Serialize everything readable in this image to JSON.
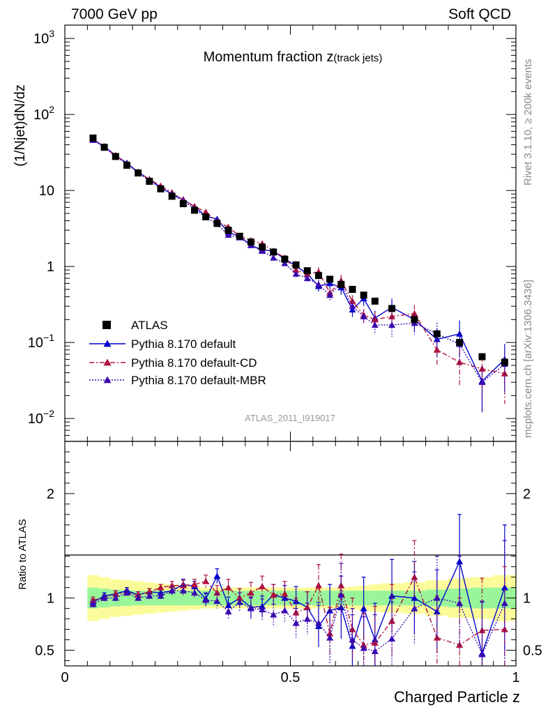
{
  "header": {
    "energy_label": "7000 GeV pp",
    "process_label": "Soft QCD"
  },
  "side": {
    "rivet_label": "Rivet 3.1.10, ≥ 200k events",
    "mcplots_label": "mcplots.cern.ch [arXiv:1306.3436]"
  },
  "colors": {
    "atlas": "#000000",
    "default": "#0000cc",
    "default_cd": "#b0113c",
    "default_mbr": "#3a0ab0",
    "band_inner": "#99f59a",
    "band_outer": "#fbfb9a"
  },
  "chart_data": [
    {
      "panel": "main",
      "type": "scatter",
      "title": "Momentum fraction z",
      "title_sub": "(track jets)",
      "analysis_label": "ATLAS_2011_I919017",
      "ylabel": "(1/Njet)dN/dz",
      "xlim": [
        0,
        1
      ],
      "ylim": [
        0.005,
        1500
      ],
      "yscale": "log",
      "yticks": [
        {
          "v": 0.01,
          "label": "10",
          "exp": "−2"
        },
        {
          "v": 0.1,
          "label": "10",
          "exp": "−1"
        },
        {
          "v": 1,
          "label": "1",
          "exp": ""
        },
        {
          "v": 10,
          "label": "10",
          "exp": ""
        },
        {
          "v": 100,
          "label": "10",
          "exp": "2"
        },
        {
          "v": 1000,
          "label": "10",
          "exp": "3"
        }
      ],
      "legend_position": "bottom-left",
      "x": [
        0.0625,
        0.0875,
        0.1125,
        0.1375,
        0.1625,
        0.1875,
        0.2125,
        0.2375,
        0.2625,
        0.2875,
        0.3125,
        0.3375,
        0.3625,
        0.3875,
        0.4125,
        0.4375,
        0.4625,
        0.4875,
        0.5125,
        0.5375,
        0.5625,
        0.5875,
        0.6125,
        0.6375,
        0.6625,
        0.6875,
        0.725,
        0.775,
        0.825,
        0.875,
        0.925,
        0.975
      ],
      "series": [
        {
          "name": "ATLAS",
          "marker": "square",
          "line": "none",
          "values": [
            49,
            37,
            28,
            21.5,
            17,
            13.2,
            10.5,
            8.4,
            6.7,
            5.5,
            4.5,
            3.7,
            3.0,
            2.5,
            2.1,
            1.8,
            1.55,
            1.25,
            1.05,
            0.88,
            0.76,
            0.68,
            0.58,
            0.5,
            0.42,
            0.35,
            0.28,
            0.2,
            0.13,
            0.1,
            0.065,
            0.055
          ]
        },
        {
          "name": "Pythia 8.170 default",
          "marker": "triangle",
          "line": "solid",
          "values": [
            47,
            38,
            29,
            23,
            17.5,
            14,
            11,
            9.0,
            7.6,
            6.1,
            4.6,
            4.2,
            2.8,
            2.5,
            1.9,
            1.65,
            1.6,
            1.25,
            1.02,
            0.8,
            0.55,
            0.6,
            0.53,
            0.27,
            0.38,
            0.21,
            0.29,
            0.2,
            0.11,
            0.13,
            0.031,
            0.06
          ],
          "errors": [
            0.015,
            0.01,
            0.01,
            0.01,
            0.01,
            0.01,
            0.01,
            0.01,
            0.01,
            0.02,
            0.02,
            0.03,
            0.04,
            0.05,
            0.05,
            0.06,
            0.07,
            0.08,
            0.1,
            0.12,
            0.15,
            0.15,
            0.2,
            0.2,
            0.2,
            0.25,
            0.3,
            0.3,
            0.4,
            0.5,
            0.6,
            0.6
          ]
        },
        {
          "name": "Pythia 8.170 default-CD",
          "marker": "triangle",
          "line": "dashdot",
          "values": [
            48,
            37,
            29,
            22.5,
            17.5,
            14,
            11.5,
            9.4,
            7.5,
            6.2,
            5.2,
            3.9,
            3.3,
            2.5,
            2.2,
            2.0,
            1.6,
            1.3,
            0.9,
            0.8,
            0.85,
            0.45,
            0.65,
            0.35,
            0.23,
            0.2,
            0.22,
            0.24,
            0.08,
            0.055,
            0.045,
            0.039
          ],
          "errors": [
            0.015,
            0.01,
            0.01,
            0.01,
            0.01,
            0.01,
            0.01,
            0.01,
            0.01,
            0.02,
            0.02,
            0.03,
            0.04,
            0.05,
            0.05,
            0.06,
            0.07,
            0.08,
            0.1,
            0.12,
            0.15,
            0.15,
            0.2,
            0.2,
            0.2,
            0.25,
            0.3,
            0.3,
            0.4,
            0.5,
            0.6,
            0.6
          ]
        },
        {
          "name": "Pythia 8.170 default-MBR",
          "marker": "triangle",
          "line": "dotted",
          "values": [
            46,
            37,
            28,
            22.5,
            17,
            13.5,
            10.7,
            9.0,
            7.2,
            5.8,
            4.4,
            3.6,
            2.6,
            2.4,
            1.9,
            1.6,
            1.3,
            1.1,
            0.8,
            0.7,
            0.58,
            0.42,
            0.6,
            0.3,
            0.22,
            0.17,
            0.17,
            0.18,
            0.13,
            0.095,
            0.03,
            0.052
          ],
          "errors": [
            0.015,
            0.01,
            0.01,
            0.01,
            0.01,
            0.01,
            0.01,
            0.01,
            0.01,
            0.02,
            0.02,
            0.03,
            0.04,
            0.05,
            0.05,
            0.06,
            0.07,
            0.08,
            0.1,
            0.12,
            0.15,
            0.15,
            0.2,
            0.2,
            0.2,
            0.25,
            0.3,
            0.3,
            0.4,
            0.5,
            0.6,
            0.6
          ]
        }
      ]
    },
    {
      "panel": "ratio",
      "type": "line",
      "ylabel": "Ratio to ATLAS",
      "xlabel": "Charged Particle z",
      "xlim": [
        0,
        1
      ],
      "ylim": [
        0.35,
        2.5
      ],
      "yticks": [
        {
          "v": 0.5,
          "label": "0.5"
        },
        {
          "v": 1,
          "label": "1"
        },
        {
          "v": 2,
          "label": "2"
        }
      ],
      "xticks": [
        {
          "v": 0,
          "label": "0"
        },
        {
          "v": 0.5,
          "label": "0.5"
        },
        {
          "v": 1,
          "label": "1"
        }
      ],
      "x": [
        0.0625,
        0.0875,
        0.1125,
        0.1375,
        0.1625,
        0.1875,
        0.2125,
        0.2375,
        0.2625,
        0.2875,
        0.3125,
        0.3375,
        0.3625,
        0.3875,
        0.4125,
        0.4375,
        0.4625,
        0.4875,
        0.5125,
        0.5375,
        0.5625,
        0.5875,
        0.6125,
        0.6375,
        0.6625,
        0.6875,
        0.725,
        0.775,
        0.825,
        0.875,
        0.925,
        0.975
      ],
      "x_edges": [
        0.05,
        0.075,
        0.1,
        0.125,
        0.15,
        0.175,
        0.2,
        0.225,
        0.25,
        0.275,
        0.3,
        0.325,
        0.35,
        0.375,
        0.4,
        0.425,
        0.45,
        0.475,
        0.5,
        0.525,
        0.55,
        0.575,
        0.6,
        0.625,
        0.65,
        0.675,
        0.7,
        0.75,
        0.8,
        0.85,
        0.9,
        0.95,
        1.0
      ],
      "band_inner": [
        0.1,
        0.09,
        0.08,
        0.075,
        0.07,
        0.07,
        0.07,
        0.07,
        0.07,
        0.07,
        0.07,
        0.07,
        0.07,
        0.07,
        0.07,
        0.07,
        0.07,
        0.07,
        0.07,
        0.07,
        0.07,
        0.07,
        0.07,
        0.07,
        0.07,
        0.07,
        0.07,
        0.07,
        0.08,
        0.09,
        0.1,
        0.1
      ],
      "band_outer": [
        0.22,
        0.2,
        0.18,
        0.17,
        0.16,
        0.15,
        0.14,
        0.13,
        0.12,
        0.11,
        0.1,
        0.1,
        0.1,
        0.1,
        0.1,
        0.1,
        0.1,
        0.1,
        0.1,
        0.1,
        0.1,
        0.1,
        0.1,
        0.11,
        0.12,
        0.13,
        0.14,
        0.15,
        0.17,
        0.19,
        0.2,
        0.22
      ],
      "series": [
        {
          "name": "Pythia 8.170 default",
          "values": [
            0.96,
            1.02,
            1.04,
            1.07,
            1.03,
            1.06,
            1.05,
            1.07,
            1.13,
            1.11,
            0.99,
            1.21,
            0.93,
            1.0,
            0.91,
            0.92,
            1.03,
            1.0,
            0.97,
            0.91,
            0.73,
            0.88,
            0.91,
            0.54,
            0.9,
            0.6,
            1.02,
            1.0,
            0.87,
            1.35,
            0.47,
            1.1
          ],
          "errors": [
            0.03,
            0.03,
            0.03,
            0.03,
            0.03,
            0.03,
            0.03,
            0.04,
            0.05,
            0.05,
            0.06,
            0.07,
            0.08,
            0.09,
            0.1,
            0.1,
            0.1,
            0.12,
            0.14,
            0.15,
            0.2,
            0.25,
            0.3,
            0.3,
            0.3,
            0.35,
            0.35,
            0.35,
            0.4,
            0.45,
            0.5,
            0.6
          ]
        },
        {
          "name": "Pythia 8.170 default-CD",
          "values": [
            0.98,
            1.0,
            1.04,
            1.05,
            1.03,
            1.06,
            1.1,
            1.12,
            1.12,
            1.13,
            1.16,
            1.05,
            1.1,
            1.0,
            1.05,
            1.11,
            1.03,
            1.04,
            0.86,
            0.91,
            1.12,
            0.66,
            1.12,
            0.7,
            0.55,
            0.57,
            0.78,
            1.2,
            0.62,
            0.55,
            0.69,
            0.7
          ],
          "errors": [
            0.03,
            0.03,
            0.03,
            0.03,
            0.03,
            0.03,
            0.03,
            0.04,
            0.05,
            0.05,
            0.06,
            0.07,
            0.08,
            0.09,
            0.1,
            0.1,
            0.1,
            0.12,
            0.14,
            0.15,
            0.2,
            0.25,
            0.3,
            0.3,
            0.3,
            0.35,
            0.35,
            0.35,
            0.4,
            0.45,
            0.5,
            0.6
          ]
        },
        {
          "name": "Pythia 8.170 default-MBR",
          "values": [
            0.94,
            1.0,
            1.0,
            1.05,
            1.0,
            1.02,
            1.02,
            1.07,
            1.07,
            1.05,
            0.98,
            0.97,
            0.87,
            0.96,
            0.9,
            0.89,
            0.84,
            0.88,
            0.76,
            0.8,
            0.76,
            0.62,
            1.03,
            0.6,
            0.52,
            0.49,
            0.61,
            0.9,
            1.0,
            0.95,
            0.46,
            0.95
          ],
          "errors": [
            0.03,
            0.03,
            0.03,
            0.03,
            0.03,
            0.03,
            0.03,
            0.04,
            0.05,
            0.05,
            0.06,
            0.07,
            0.08,
            0.09,
            0.1,
            0.1,
            0.1,
            0.12,
            0.14,
            0.15,
            0.2,
            0.25,
            0.3,
            0.3,
            0.3,
            0.35,
            0.35,
            0.35,
            0.4,
            0.45,
            0.5,
            0.6
          ]
        }
      ]
    }
  ]
}
